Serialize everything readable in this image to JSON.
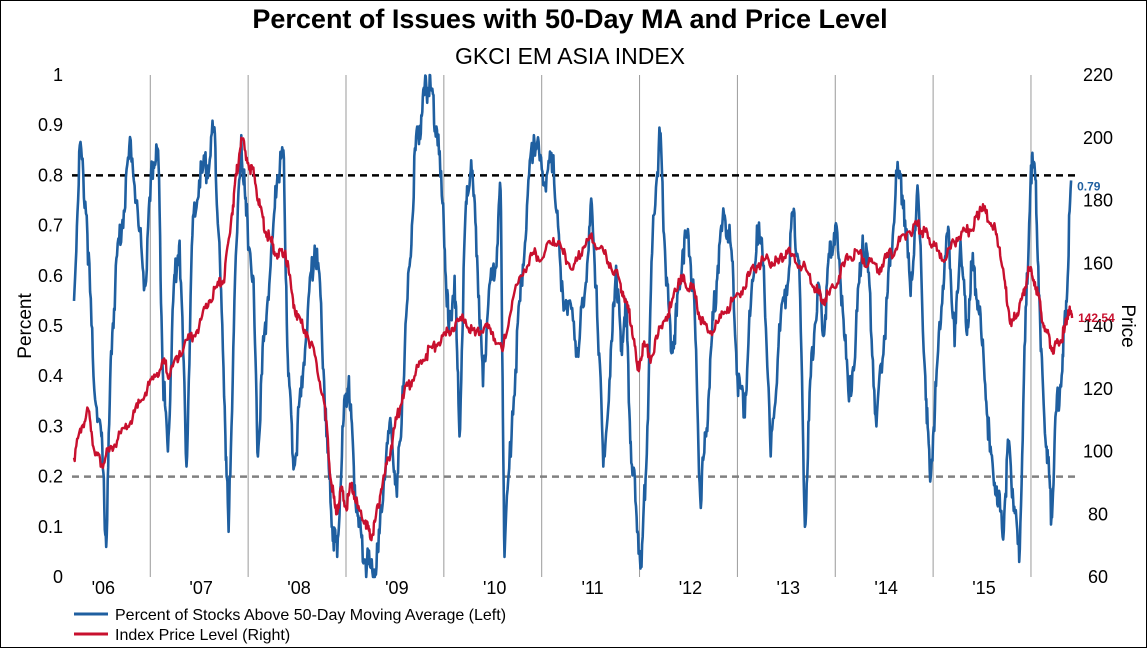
{
  "chart_data": {
    "type": "line",
    "title": "Percent of Issues with 50-Day MA and Price Level",
    "subtitle": "GKCI EM ASIA INDEX",
    "ylabel_left": "Percent",
    "ylabel_right": "Price",
    "ylim_left": [
      0,
      1
    ],
    "ylim_right": [
      60,
      220
    ],
    "yticks_left": [
      "0",
      "0.1",
      "0.2",
      "0.3",
      "0.4",
      "0.5",
      "0.6",
      "0.7",
      "0.8",
      "0.9",
      "1"
    ],
    "yticks_right": [
      "60",
      "80",
      "100",
      "120",
      "140",
      "160",
      "180",
      "200",
      "220"
    ],
    "x_ticks": [
      "'06",
      "'07",
      "'08",
      "'09",
      "'10",
      "'11",
      "'12",
      "'13",
      "'14",
      "'15"
    ],
    "x_range": [
      2005.7,
      2015.95
    ],
    "grid_x": true,
    "reference_lines": [
      {
        "axis": "left",
        "value": 0.8,
        "color": "#000000",
        "style": "dashed"
      },
      {
        "axis": "left",
        "value": 0.2,
        "color": "#808080",
        "style": "dashed"
      }
    ],
    "legend_position": "bottom-left",
    "series": [
      {
        "name": "Percent of Stocks Above 50-Day Moving Average  (Left)",
        "axis": "left",
        "color": "#1f5fa0",
        "end_label": "0.79",
        "points": [
          [
            2005.72,
            0.55
          ],
          [
            2005.78,
            0.86
          ],
          [
            2005.85,
            0.72
          ],
          [
            2005.92,
            0.4
          ],
          [
            2006.0,
            0.28
          ],
          [
            2006.05,
            0.06
          ],
          [
            2006.1,
            0.45
          ],
          [
            2006.16,
            0.64
          ],
          [
            2006.23,
            0.73
          ],
          [
            2006.3,
            0.87
          ],
          [
            2006.38,
            0.7
          ],
          [
            2006.45,
            0.58
          ],
          [
            2006.52,
            0.82
          ],
          [
            2006.58,
            0.85
          ],
          [
            2006.63,
            0.4
          ],
          [
            2006.68,
            0.25
          ],
          [
            2006.74,
            0.58
          ],
          [
            2006.8,
            0.67
          ],
          [
            2006.87,
            0.22
          ],
          [
            2006.93,
            0.68
          ],
          [
            2007.0,
            0.79
          ],
          [
            2007.08,
            0.82
          ],
          [
            2007.15,
            0.89
          ],
          [
            2007.2,
            0.68
          ],
          [
            2007.26,
            0.34
          ],
          [
            2007.3,
            0.09
          ],
          [
            2007.36,
            0.55
          ],
          [
            2007.43,
            0.88
          ],
          [
            2007.48,
            0.72
          ],
          [
            2007.55,
            0.6
          ],
          [
            2007.6,
            0.24
          ],
          [
            2007.66,
            0.47
          ],
          [
            2007.73,
            0.62
          ],
          [
            2007.8,
            0.8
          ],
          [
            2007.86,
            0.85
          ],
          [
            2007.91,
            0.4
          ],
          [
            2007.97,
            0.22
          ],
          [
            2008.04,
            0.36
          ],
          [
            2008.11,
            0.53
          ],
          [
            2008.18,
            0.66
          ],
          [
            2008.24,
            0.56
          ],
          [
            2008.3,
            0.28
          ],
          [
            2008.36,
            0.1
          ],
          [
            2008.41,
            0.04
          ],
          [
            2008.47,
            0.3
          ],
          [
            2008.53,
            0.4
          ],
          [
            2008.58,
            0.22
          ],
          [
            2008.63,
            0.1
          ],
          [
            2008.7,
            0.03
          ],
          [
            2008.77,
            0.01
          ],
          [
            2008.83,
            0.05
          ],
          [
            2008.89,
            0.2
          ],
          [
            2008.96,
            0.3
          ],
          [
            2009.02,
            0.16
          ],
          [
            2009.08,
            0.38
          ],
          [
            2009.15,
            0.62
          ],
          [
            2009.21,
            0.85
          ],
          [
            2009.27,
            0.92
          ],
          [
            2009.32,
            0.98
          ],
          [
            2009.37,
            0.97
          ],
          [
            2009.43,
            0.89
          ],
          [
            2009.5,
            0.7
          ],
          [
            2009.55,
            0.49
          ],
          [
            2009.61,
            0.6
          ],
          [
            2009.66,
            0.28
          ],
          [
            2009.72,
            0.72
          ],
          [
            2009.78,
            0.83
          ],
          [
            2009.84,
            0.64
          ],
          [
            2009.9,
            0.38
          ],
          [
            2009.96,
            0.57
          ],
          [
            2010.02,
            0.6
          ],
          [
            2010.08,
            0.77
          ],
          [
            2010.12,
            0.04
          ],
          [
            2010.2,
            0.33
          ],
          [
            2010.28,
            0.55
          ],
          [
            2010.35,
            0.74
          ],
          [
            2010.42,
            0.88
          ],
          [
            2010.48,
            0.83
          ],
          [
            2010.55,
            0.8
          ],
          [
            2010.62,
            0.84
          ],
          [
            2010.7,
            0.57
          ],
          [
            2010.78,
            0.55
          ],
          [
            2010.86,
            0.45
          ],
          [
            2010.93,
            0.54
          ],
          [
            2011.0,
            0.74
          ],
          [
            2011.06,
            0.58
          ],
          [
            2011.13,
            0.22
          ],
          [
            2011.2,
            0.4
          ],
          [
            2011.26,
            0.62
          ],
          [
            2011.31,
            0.45
          ],
          [
            2011.36,
            0.55
          ],
          [
            2011.41,
            0.27
          ],
          [
            2011.47,
            0.12
          ],
          [
            2011.52,
            0.02
          ],
          [
            2011.58,
            0.3
          ],
          [
            2011.64,
            0.72
          ],
          [
            2011.71,
            0.88
          ],
          [
            2011.76,
            0.65
          ],
          [
            2011.82,
            0.45
          ],
          [
            2011.88,
            0.52
          ],
          [
            2011.94,
            0.65
          ],
          [
            2012.0,
            0.68
          ],
          [
            2012.06,
            0.55
          ],
          [
            2012.12,
            0.16
          ],
          [
            2012.18,
            0.28
          ],
          [
            2012.24,
            0.48
          ],
          [
            2012.3,
            0.62
          ],
          [
            2012.37,
            0.72
          ],
          [
            2012.44,
            0.65
          ],
          [
            2012.5,
            0.4
          ],
          [
            2012.57,
            0.33
          ],
          [
            2012.63,
            0.52
          ],
          [
            2012.7,
            0.7
          ],
          [
            2012.77,
            0.62
          ],
          [
            2012.84,
            0.24
          ],
          [
            2012.92,
            0.46
          ],
          [
            2013.0,
            0.58
          ],
          [
            2013.07,
            0.72
          ],
          [
            2013.13,
            0.63
          ],
          [
            2013.19,
            0.1
          ],
          [
            2013.25,
            0.4
          ],
          [
            2013.32,
            0.58
          ],
          [
            2013.38,
            0.48
          ],
          [
            2013.44,
            0.64
          ],
          [
            2013.5,
            0.7
          ],
          [
            2013.57,
            0.56
          ],
          [
            2013.64,
            0.35
          ],
          [
            2013.71,
            0.48
          ],
          [
            2013.78,
            0.68
          ],
          [
            2013.85,
            0.58
          ],
          [
            2013.92,
            0.3
          ],
          [
            2014.0,
            0.48
          ],
          [
            2014.06,
            0.62
          ],
          [
            2014.13,
            0.8
          ],
          [
            2014.2,
            0.75
          ],
          [
            2014.27,
            0.56
          ],
          [
            2014.34,
            0.78
          ],
          [
            2014.42,
            0.4
          ],
          [
            2014.47,
            0.19
          ],
          [
            2014.53,
            0.38
          ],
          [
            2014.6,
            0.58
          ],
          [
            2014.66,
            0.69
          ],
          [
            2014.72,
            0.46
          ],
          [
            2014.78,
            0.67
          ],
          [
            2014.84,
            0.49
          ],
          [
            2014.9,
            0.62
          ],
          [
            2014.96,
            0.55
          ],
          [
            2015.02,
            0.42
          ],
          [
            2015.08,
            0.25
          ],
          [
            2015.15,
            0.18
          ],
          [
            2015.21,
            0.08
          ],
          [
            2015.27,
            0.26
          ],
          [
            2015.33,
            0.14
          ],
          [
            2015.38,
            0.03
          ],
          [
            2015.44,
            0.47
          ],
          [
            2015.5,
            0.82
          ],
          [
            2015.55,
            0.79
          ],
          [
            2015.6,
            0.45
          ],
          [
            2015.66,
            0.26
          ],
          [
            2015.71,
            0.12
          ],
          [
            2015.76,
            0.33
          ],
          [
            2015.82,
            0.41
          ],
          [
            2015.86,
            0.55
          ],
          [
            2015.91,
            0.79
          ]
        ]
      },
      {
        "name": "Index Price Level  (Right)",
        "axis": "right",
        "color": "#c8102e",
        "end_label": "142.54",
        "points": [
          [
            2005.72,
            98
          ],
          [
            2005.8,
            108
          ],
          [
            2005.87,
            113
          ],
          [
            2005.93,
            100
          ],
          [
            2006.0,
            96
          ],
          [
            2006.08,
            100
          ],
          [
            2006.17,
            104
          ],
          [
            2006.27,
            108
          ],
          [
            2006.37,
            114
          ],
          [
            2006.47,
            120
          ],
          [
            2006.57,
            125
          ],
          [
            2006.65,
            128
          ],
          [
            2006.7,
            124
          ],
          [
            2006.8,
            132
          ],
          [
            2006.9,
            136
          ],
          [
            2007.0,
            140
          ],
          [
            2007.1,
            148
          ],
          [
            2007.2,
            153
          ],
          [
            2007.26,
            156
          ],
          [
            2007.33,
            175
          ],
          [
            2007.38,
            188
          ],
          [
            2007.43,
            200
          ],
          [
            2007.5,
            192
          ],
          [
            2007.56,
            188
          ],
          [
            2007.62,
            178
          ],
          [
            2007.68,
            170
          ],
          [
            2007.75,
            166
          ],
          [
            2007.81,
            162
          ],
          [
            2007.88,
            164
          ],
          [
            2007.94,
            152
          ],
          [
            2008.0,
            142
          ],
          [
            2008.1,
            138
          ],
          [
            2008.2,
            128
          ],
          [
            2008.28,
            115
          ],
          [
            2008.35,
            90
          ],
          [
            2008.4,
            80
          ],
          [
            2008.45,
            88
          ],
          [
            2008.5,
            82
          ],
          [
            2008.56,
            90
          ],
          [
            2008.62,
            82
          ],
          [
            2008.7,
            78
          ],
          [
            2008.75,
            72
          ],
          [
            2008.8,
            78
          ],
          [
            2008.86,
            88
          ],
          [
            2008.94,
            98
          ],
          [
            2009.0,
            108
          ],
          [
            2009.08,
            118
          ],
          [
            2009.16,
            122
          ],
          [
            2009.24,
            127
          ],
          [
            2009.32,
            131
          ],
          [
            2009.42,
            134
          ],
          [
            2009.52,
            137
          ],
          [
            2009.62,
            141
          ],
          [
            2009.72,
            142
          ],
          [
            2009.82,
            137
          ],
          [
            2009.92,
            140
          ],
          [
            2010.0,
            138
          ],
          [
            2010.1,
            132
          ],
          [
            2010.2,
            148
          ],
          [
            2010.32,
            158
          ],
          [
            2010.42,
            163
          ],
          [
            2010.52,
            162
          ],
          [
            2010.62,
            168
          ],
          [
            2010.72,
            163
          ],
          [
            2010.82,
            158
          ],
          [
            2010.92,
            165
          ],
          [
            2011.0,
            168
          ],
          [
            2011.1,
            165
          ],
          [
            2011.2,
            160
          ],
          [
            2011.3,
            154
          ],
          [
            2011.36,
            148
          ],
          [
            2011.42,
            140
          ],
          [
            2011.48,
            126
          ],
          [
            2011.54,
            134
          ],
          [
            2011.62,
            130
          ],
          [
            2011.72,
            140
          ],
          [
            2011.82,
            146
          ],
          [
            2011.9,
            155
          ],
          [
            2011.96,
            154
          ],
          [
            2012.04,
            152
          ],
          [
            2012.12,
            143
          ],
          [
            2012.2,
            138
          ],
          [
            2012.3,
            141
          ],
          [
            2012.4,
            146
          ],
          [
            2012.52,
            150
          ],
          [
            2012.62,
            156
          ],
          [
            2012.72,
            160
          ],
          [
            2012.82,
            161
          ],
          [
            2012.92,
            160
          ],
          [
            2013.0,
            164
          ],
          [
            2013.1,
            160
          ],
          [
            2013.2,
            158
          ],
          [
            2013.3,
            152
          ],
          [
            2013.36,
            148
          ],
          [
            2013.44,
            150
          ],
          [
            2013.54,
            156
          ],
          [
            2013.64,
            162
          ],
          [
            2013.74,
            163
          ],
          [
            2013.84,
            160
          ],
          [
            2013.94,
            158
          ],
          [
            2014.04,
            162
          ],
          [
            2014.14,
            166
          ],
          [
            2014.24,
            170
          ],
          [
            2014.34,
            172
          ],
          [
            2014.4,
            170
          ],
          [
            2014.46,
            168
          ],
          [
            2014.54,
            164
          ],
          [
            2014.64,
            162
          ],
          [
            2014.74,
            168
          ],
          [
            2014.84,
            170
          ],
          [
            2014.92,
            172
          ],
          [
            2014.98,
            178
          ],
          [
            2015.04,
            176
          ],
          [
            2015.12,
            172
          ],
          [
            2015.18,
            165
          ],
          [
            2015.24,
            152
          ],
          [
            2015.3,
            140
          ],
          [
            2015.36,
            144
          ],
          [
            2015.42,
            150
          ],
          [
            2015.48,
            158
          ],
          [
            2015.54,
            154
          ],
          [
            2015.6,
            145
          ],
          [
            2015.66,
            138
          ],
          [
            2015.72,
            133
          ],
          [
            2015.78,
            135
          ],
          [
            2015.84,
            138
          ],
          [
            2015.88,
            145
          ],
          [
            2015.92,
            142.54
          ]
        ]
      }
    ]
  }
}
